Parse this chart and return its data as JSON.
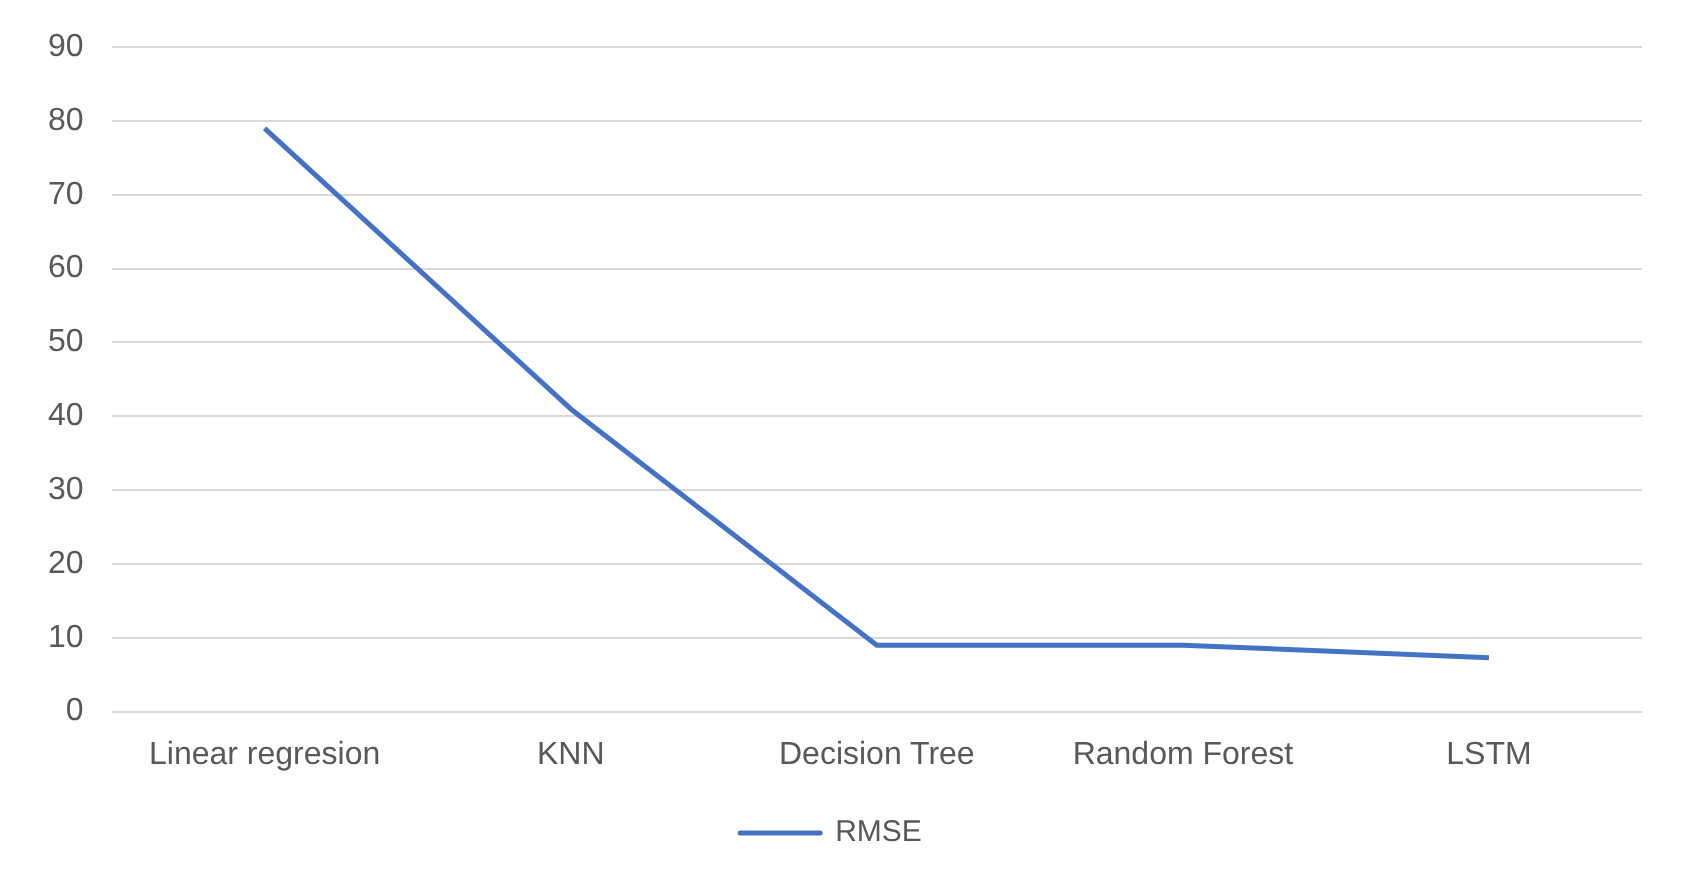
{
  "chart_data": {
    "type": "line",
    "categories": [
      "Linear regresion",
      "KNN",
      "Decision Tree",
      "Random Forest",
      "LSTM"
    ],
    "series": [
      {
        "name": "RMSE",
        "color": "#4472c4",
        "values": [
          79,
          41,
          9,
          9,
          7.3
        ]
      }
    ],
    "ylim": [
      0,
      90
    ],
    "yticks": [
      0,
      10,
      20,
      30,
      40,
      50,
      60,
      70,
      80,
      90
    ],
    "grid": "y",
    "legend": "bottom",
    "marker": "none"
  }
}
